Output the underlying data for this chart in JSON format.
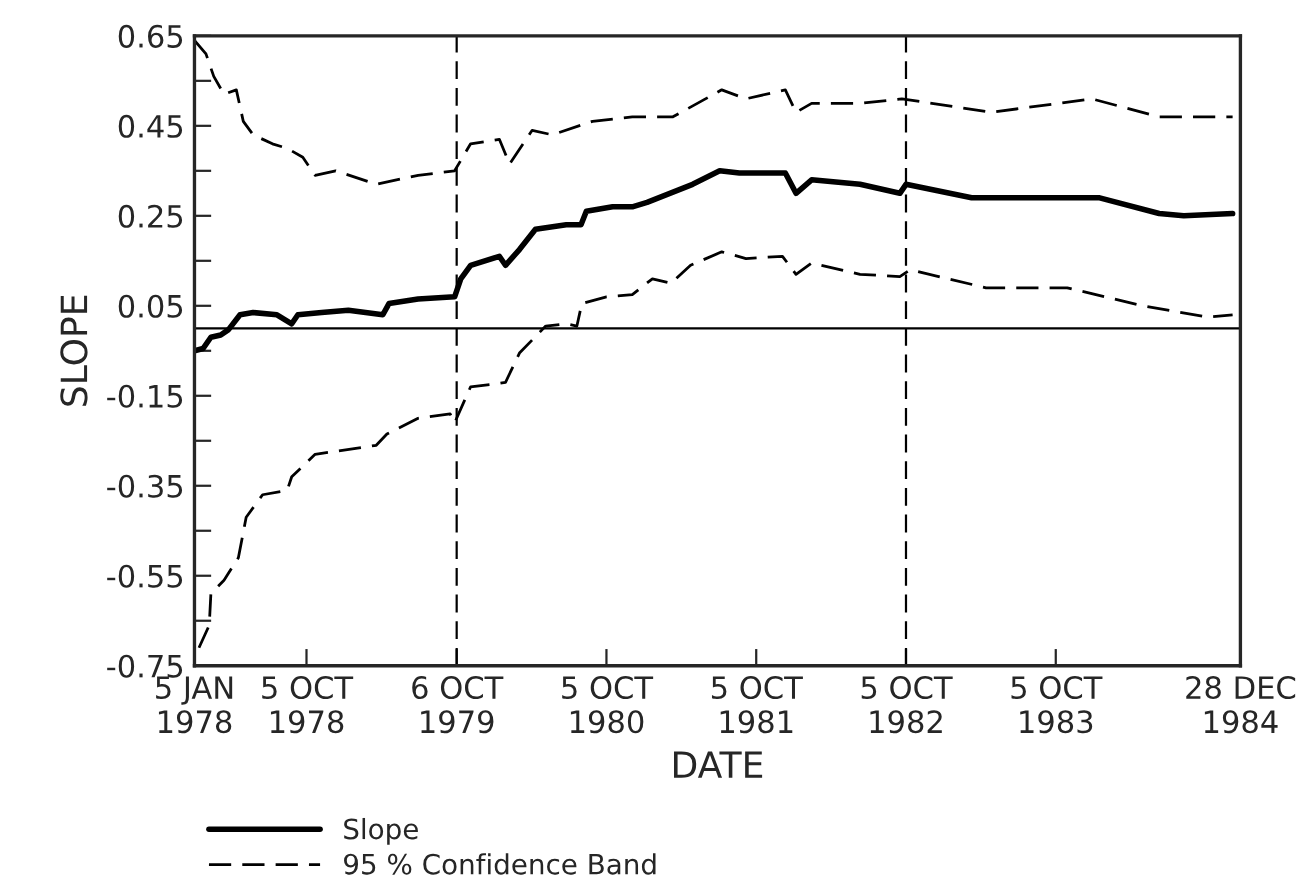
{
  "chart_data": {
    "type": "line",
    "xlabel": "DATE",
    "ylabel": "SLOPE",
    "xlim": [
      "1978-01-05",
      "1984-12-28"
    ],
    "ylim": [
      -0.75,
      0.65
    ],
    "xticks": [
      {
        "value": "1978-01-05",
        "label": "5 JAN\n1978"
      },
      {
        "value": "1978-10-05",
        "label": "5 OCT\n1978"
      },
      {
        "value": "1979-10-06",
        "label": "6 OCT\n1979"
      },
      {
        "value": "1980-10-05",
        "label": "5 OCT\n1980"
      },
      {
        "value": "1981-10-05",
        "label": "5 OCT\n1981"
      },
      {
        "value": "1982-10-05",
        "label": "5 OCT\n1982"
      },
      {
        "value": "1983-10-05",
        "label": "5 OCT\n1983"
      },
      {
        "value": "1984-12-28",
        "label": "28 DEC\n1984"
      }
    ],
    "yticks": [
      {
        "value": 0.65,
        "label": "0.65"
      },
      {
        "value": 0.55,
        "label": null
      },
      {
        "value": 0.45,
        "label": "0.45"
      },
      {
        "value": 0.35,
        "label": null
      },
      {
        "value": 0.25,
        "label": "0.25"
      },
      {
        "value": 0.15,
        "label": null
      },
      {
        "value": 0.05,
        "label": "0.05"
      },
      {
        "value": -0.05,
        "label": null
      },
      {
        "value": -0.15,
        "label": "-0.15"
      },
      {
        "value": -0.25,
        "label": null
      },
      {
        "value": -0.35,
        "label": "-0.35"
      },
      {
        "value": -0.45,
        "label": null
      },
      {
        "value": -0.55,
        "label": "-0.55"
      },
      {
        "value": -0.65,
        "label": null
      },
      {
        "value": -0.75,
        "label": "-0.75"
      }
    ],
    "grid": false,
    "legend": "bottom",
    "ref_lines": [
      {
        "axis": "y",
        "value": 0,
        "line_style": "solid"
      },
      {
        "axis": "x",
        "value": "1979-10-06",
        "line_style": "dashed"
      },
      {
        "axis": "x",
        "value": "1982-10-05",
        "line_style": "dashed"
      }
    ],
    "series": [
      {
        "name": "Slope",
        "color": "#000000",
        "line_style": "solid",
        "x": [
          "1978-01-05",
          "1978-01-26",
          "1978-02-14",
          "1978-03-10",
          "1978-03-29",
          "1978-04-26",
          "1978-05-28",
          "1978-07-25",
          "1978-08-30",
          "1978-09-14",
          "1978-11-11",
          "1979-01-15",
          "1979-04-09",
          "1979-04-24",
          "1979-07-04",
          "1979-10-01",
          "1979-10-16",
          "1979-11-09",
          "1980-01-18",
          "1980-02-02",
          "1980-03-07",
          "1980-04-15",
          "1980-06-29",
          "1980-08-04",
          "1980-08-17",
          "1980-10-20",
          "1980-12-07",
          "1981-01-12",
          "1981-05-03",
          "1981-07-08",
          "1981-08-25",
          "1981-12-15",
          "1982-01-10",
          "1982-02-17",
          "1982-06-15",
          "1982-09-20",
          "1982-10-05",
          "1983-03-14",
          "1984-01-20",
          "1984-06-13",
          "1984-08-12",
          "1984-12-09"
        ],
        "values": [
          -0.05,
          -0.045,
          -0.02,
          -0.015,
          -0.003,
          0.03,
          0.035,
          0.03,
          0.01,
          0.03,
          0.035,
          0.04,
          0.03,
          0.055,
          0.065,
          0.07,
          0.11,
          0.14,
          0.16,
          0.14,
          0.175,
          0.22,
          0.23,
          0.23,
          0.26,
          0.27,
          0.27,
          0.28,
          0.32,
          0.35,
          0.345,
          0.345,
          0.3,
          0.33,
          0.32,
          0.3,
          0.32,
          0.29,
          0.29,
          0.255,
          0.25,
          0.255
        ]
      },
      {
        "name": "95 % Confidence Band",
        "color": "#000000",
        "line_style": "dashed",
        "x": [
          "1978-01-05",
          "1978-02-02",
          "1978-02-21",
          "1978-03-18",
          "1978-04-17",
          "1978-05-04",
          "1978-05-28",
          "1978-07-14",
          "1978-08-19",
          "1978-09-26",
          "1978-10-26",
          "1978-12-15",
          "1979-03-24",
          "1979-07-04",
          "1979-10-01",
          "1979-11-09",
          "1980-01-18",
          "1980-02-12",
          "1980-04-07",
          "1980-05-26",
          "1980-09-01",
          "1980-12-07",
          "1981-03-16",
          "1981-07-13",
          "1981-09-10",
          "1981-12-15",
          "1982-01-10",
          "1982-02-17",
          "1982-06-15",
          "1982-09-25",
          "1982-12-07",
          "1983-05-01",
          "1984-01-01",
          "1984-06-13",
          "1984-12-09"
        ],
        "values": [
          0.64,
          0.61,
          0.56,
          0.52,
          0.53,
          0.46,
          0.43,
          0.41,
          0.4,
          0.38,
          0.34,
          0.35,
          0.32,
          0.34,
          0.35,
          0.41,
          0.42,
          0.365,
          0.44,
          0.43,
          0.46,
          0.47,
          0.47,
          0.53,
          0.51,
          0.53,
          0.48,
          0.5,
          0.5,
          0.51,
          0.5,
          0.48,
          0.51,
          0.47,
          0.47
        ]
      },
      {
        "color": "#000000",
        "line_style": "dashed",
        "x": [
          "1978-01-16",
          "1978-02-10",
          "1978-02-14",
          "1978-03-18",
          "1978-04-22",
          "1978-05-11",
          "1978-06-20",
          "1978-08-19",
          "1978-08-30",
          "1978-10-26",
          "1979-03-24",
          "1979-04-19",
          "1979-07-04",
          "1979-09-20",
          "1979-10-01",
          "1979-11-09",
          "1979-12-28",
          "1980-02-02",
          "1980-03-07",
          "1980-05-10",
          "1980-06-29",
          "1980-07-25",
          "1980-08-06",
          "1980-10-05",
          "1980-12-07",
          "1981-01-25",
          "1981-03-11",
          "1981-04-28",
          "1981-07-13",
          "1981-09-10",
          "1981-12-08",
          "1982-01-10",
          "1982-02-17",
          "1982-06-15",
          "1982-09-20",
          "1982-10-15",
          "1983-04-18",
          "1983-11-02",
          "1984-05-03",
          "1984-10-10",
          "1984-12-09"
        ],
        "values": [
          -0.71,
          -0.66,
          -0.59,
          -0.56,
          -0.51,
          -0.42,
          -0.37,
          -0.36,
          -0.33,
          -0.28,
          -0.26,
          -0.235,
          -0.2,
          -0.19,
          -0.21,
          -0.13,
          -0.125,
          -0.12,
          -0.055,
          0.005,
          0.01,
          0.005,
          0.055,
          0.07,
          0.075,
          0.11,
          0.1,
          0.14,
          0.17,
          0.155,
          0.16,
          0.12,
          0.145,
          0.12,
          0.115,
          0.13,
          0.09,
          0.09,
          0.05,
          0.025,
          0.03
        ]
      }
    ]
  }
}
